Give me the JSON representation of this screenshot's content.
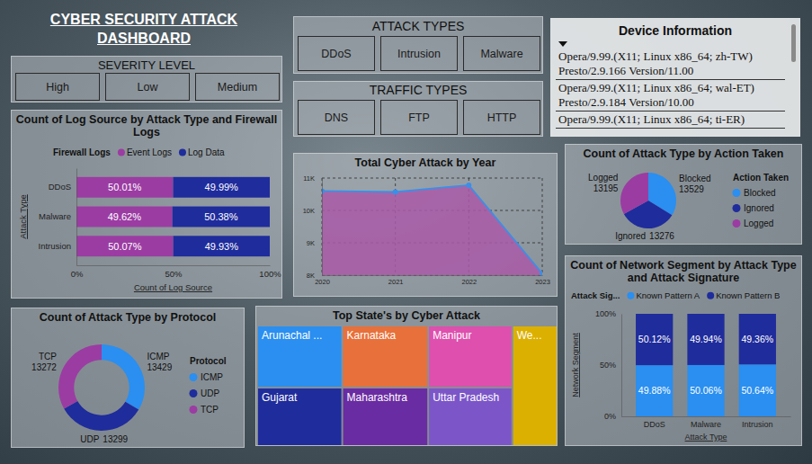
{
  "title": "CYBER SECURITY ATTACK DASHBOARD",
  "slicers": [
    {
      "title": "SEVERITY LEVEL",
      "items": [
        "High",
        "Low",
        "Medium"
      ]
    },
    {
      "title": "ATTACK TYPES",
      "items": [
        "DDoS",
        "Intrusion",
        "Malware"
      ]
    },
    {
      "title": "TRAFFIC TYPES",
      "items": [
        "DNS",
        "FTP",
        "HTTP"
      ]
    }
  ],
  "device_information": {
    "title": "Device Information",
    "items": [
      "Opera/9.99.(X11; Linux x86_64; zh-TW) Presto/2.9.166 Version/11.00",
      "Opera/9.99.(X11; Linux x86_64; wal-ET) Presto/2.9.184 Version/10.00",
      "Opera/9.99.(X11; Linux x86_64; ti-ER)"
    ]
  },
  "chart_data": [
    {
      "type": "bar",
      "title": "Count of Log Source by Attack Type and Firewall Logs",
      "x_label": "Count of Log Source",
      "y_label": "Attack Type",
      "legend_title": "Firewall Logs",
      "legend": "top",
      "orientation": "horizontal",
      "stacked": true,
      "data_labels": true,
      "categories": [
        "DDoS",
        "Malware",
        "Intrusion"
      ],
      "series": [
        {
          "name": "Event Logs",
          "color": "#9b3ca3",
          "values": [
            50.01,
            49.62,
            50.07
          ],
          "value_labels": [
            "50.01%",
            "49.62%",
            "50.07%"
          ]
        },
        {
          "name": "Log Data",
          "color": "#1f2c9c",
          "values": [
            49.99,
            50.38,
            49.93
          ],
          "value_labels": [
            "49.99%",
            "50.38%",
            "49.93%"
          ]
        }
      ],
      "xlim": [
        0,
        100
      ],
      "xticks": [
        {
          "value": 0,
          "label": "0%"
        },
        {
          "value": 50,
          "label": "50%"
        },
        {
          "value": 100,
          "label": "100%"
        }
      ]
    },
    {
      "type": "area",
      "title": "Total Cyber Attack by Year",
      "x": [
        2020,
        2021,
        2022,
        2023
      ],
      "values": [
        10600,
        10570,
        10780,
        8050
      ],
      "color": "#3b8fe8",
      "marker": "circle",
      "grid": true,
      "xlim": [
        2020,
        2023
      ],
      "xticks": [
        2020,
        2021,
        2022,
        2023
      ],
      "ylim": [
        8000,
        11000
      ],
      "yticks": [
        {
          "value": 8000,
          "label": "8K"
        },
        {
          "value": 9000,
          "label": "9K"
        },
        {
          "value": 10000,
          "label": "10K"
        },
        {
          "value": 11000,
          "label": "11K"
        }
      ]
    },
    {
      "type": "pie",
      "title": "Count of Attack Type by Action Taken",
      "legend_title": "Action Taken",
      "legend": "right",
      "data_labels": true,
      "categories": [
        "Blocked",
        "Ignored",
        "Logged"
      ],
      "values": [
        13529,
        13276,
        13195
      ],
      "colors": [
        "#2a8ff0",
        "#1f2c9c",
        "#9b3ca3"
      ]
    },
    {
      "type": "donut",
      "title": "Count of Attack Type by Protocol",
      "legend_title": "Protocol",
      "legend": "right",
      "data_labels": true,
      "categories": [
        "ICMP",
        "UDP",
        "TCP"
      ],
      "values": [
        13429,
        13299,
        13272
      ],
      "colors": [
        "#2a8ff0",
        "#1f2c9c",
        "#9b3ca3"
      ]
    },
    {
      "type": "treemap",
      "title": "Top State's by Cyber Attack",
      "categories": [
        "Arunachal ...",
        "Gujarat",
        "Karnataka",
        "Maharashtra",
        "Manipur",
        "Uttar Pradesh",
        "We..."
      ],
      "values": [
        1175,
        1105,
        1187,
        1117,
        1162,
        1093,
        1212
      ],
      "colors": [
        "#2a8ff0",
        "#1f2c9c",
        "#e8703a",
        "#6a2ca2",
        "#de4fae",
        "#7c56c8",
        "#dcb000"
      ]
    },
    {
      "type": "bar",
      "title": "Count of Network Segment by Attack Type and Attack Signature",
      "x_label": "Attack Type",
      "y_label": "Network Segment",
      "legend_title": "Attack Sig...",
      "legend": "top",
      "stacked": true,
      "data_labels": true,
      "categories": [
        "DDoS",
        "Malware",
        "Intrusion"
      ],
      "series": [
        {
          "name": "Known Pattern A",
          "color": "#2a8ff0",
          "values": [
            49.88,
            50.06,
            50.64
          ],
          "value_labels": [
            "49.88%",
            "50.06%",
            "50.64%"
          ]
        },
        {
          "name": "Known Pattern B",
          "color": "#1f2c9c",
          "values": [
            50.12,
            49.94,
            49.36
          ],
          "value_labels": [
            "50.12%",
            "49.94%",
            "49.36%"
          ]
        }
      ],
      "ylim": [
        0,
        100
      ],
      "yticks": [
        {
          "value": 0,
          "label": "0%"
        },
        {
          "value": 50,
          "label": "50%"
        },
        {
          "value": 100,
          "label": "100%"
        }
      ]
    }
  ]
}
